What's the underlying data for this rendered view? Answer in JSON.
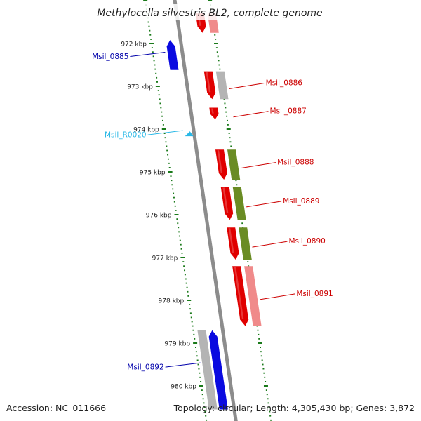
{
  "title": "Methylocella silvestris BL2, complete genome",
  "footer": {
    "accession": "Accession: NC_011666",
    "topology": "Topology: circular; Length: 4,305,430 bp; Genes: 3,872"
  },
  "colors": {
    "backbone": "#8c8c8c",
    "ruler": "#1a7a1a",
    "forward_gene": "#e00000",
    "reverse_gene": "#0a0ae0",
    "cog_gray": "#b4b4b4",
    "cog_green": "#6a8c24",
    "cog_pink": "#f08a8a",
    "rna": "#29b8e6",
    "label_forward": "#cc0000",
    "label_reverse": "#0000aa",
    "label_rna": "#29b8e6"
  },
  "ruler": {
    "unit": "kbp",
    "ticks": [
      {
        "kbp": 972,
        "label": "972 kbp"
      },
      {
        "kbp": 973,
        "label": "973 kbp"
      },
      {
        "kbp": 974,
        "label": "974 kbp"
      },
      {
        "kbp": 975,
        "label": "975 kbp"
      },
      {
        "kbp": 976,
        "label": "976 kbp"
      },
      {
        "kbp": 977,
        "label": "977 kbp"
      },
      {
        "kbp": 978,
        "label": "978 kbp"
      },
      {
        "kbp": 979,
        "label": "979 kbp"
      },
      {
        "kbp": 980,
        "label": "980 kbp"
      }
    ]
  },
  "genes": [
    {
      "id": "top-partial",
      "label": "",
      "strand": "forward",
      "start_kbp": 971.3,
      "end_kbp": 971.75,
      "track_color": "forward_gene",
      "cog_color": "cog_pink"
    },
    {
      "id": "msil-0885",
      "label": "Msil_0885",
      "strand": "reverse",
      "start_kbp": 971.92,
      "end_kbp": 972.62,
      "track_color": "reverse_gene",
      "cog_color": null
    },
    {
      "id": "msil-0886",
      "label": "Msil_0886",
      "strand": "forward",
      "start_kbp": 972.65,
      "end_kbp": 973.3,
      "track_color": "forward_gene",
      "cog_color": "cog_gray"
    },
    {
      "id": "msil-0887",
      "label": "Msil_0887",
      "strand": "forward",
      "start_kbp": 973.5,
      "end_kbp": 973.77,
      "track_color": "forward_gene",
      "cog_color": null
    },
    {
      "id": "msil-r0020",
      "label": "Msil_R0020",
      "strand": "reverse",
      "start_kbp": 974.05,
      "end_kbp": 974.15,
      "track_color": "rna",
      "cog_color": null
    },
    {
      "id": "msil-0888",
      "label": "Msil_0888",
      "strand": "forward",
      "start_kbp": 974.48,
      "end_kbp": 975.18,
      "track_color": "forward_gene",
      "cog_color": "cog_green"
    },
    {
      "id": "msil-0889",
      "label": "Msil_0889",
      "strand": "forward",
      "start_kbp": 975.35,
      "end_kbp": 976.12,
      "track_color": "forward_gene",
      "cog_color": "cog_green"
    },
    {
      "id": "msil-0890",
      "label": "Msil_0890",
      "strand": "forward",
      "start_kbp": 976.3,
      "end_kbp": 977.05,
      "track_color": "forward_gene",
      "cog_color": "cog_green"
    },
    {
      "id": "msil-0891",
      "label": "Msil_0891",
      "strand": "forward",
      "start_kbp": 977.2,
      "end_kbp": 978.6,
      "track_color": "forward_gene",
      "cog_color": "cog_pink"
    },
    {
      "id": "msil-0892",
      "label": "Msil_0892",
      "strand": "reverse",
      "start_kbp": 978.7,
      "end_kbp": 980.55,
      "track_color": "reverse_gene",
      "cog_color": "cog_gray"
    }
  ]
}
